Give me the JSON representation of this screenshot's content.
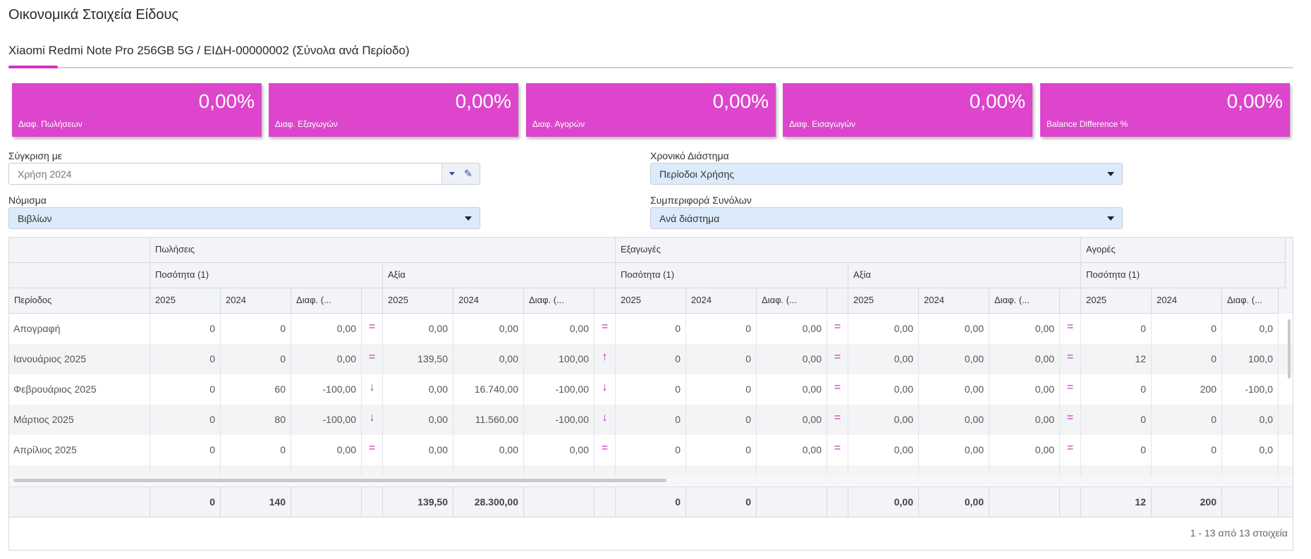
{
  "page": {
    "title": "Οικονομικά Στοιχεία Είδους",
    "subtitle": "Xiaomi Redmi Note Pro 256GB 5G / ΕΙΔΗ-00000002 (Σύνολα ανά Περίοδο)"
  },
  "kpis": [
    {
      "value": "0,00%",
      "label": "Διαφ. Πωλήσεων"
    },
    {
      "value": "0,00%",
      "label": "Διαφ. Εξαγωγών"
    },
    {
      "value": "0,00%",
      "label": "Διαφ. Αγορών"
    },
    {
      "value": "0,00%",
      "label": "Διαφ. Εισαγωγών"
    },
    {
      "value": "0,00%",
      "label": "Balance Difference %"
    }
  ],
  "filters": {
    "compare": {
      "label": "Σύγκριση με",
      "value": "Χρήση 2024"
    },
    "period": {
      "label": "Χρονικό Διάστημα",
      "value": "Περίοδοι Χρήσης"
    },
    "currency": {
      "label": "Νόμισμα",
      "value": "Βιβλίων"
    },
    "totals": {
      "label": "Συμπεριφορά Συνόλων",
      "value": "Ανά διάστημα"
    }
  },
  "grid": {
    "groups": [
      "Πωλήσεις",
      "Εξαγωγές",
      "Αγορές"
    ],
    "subgroups": [
      "Ποσότητα (1)",
      "Αξία",
      "Ποσότητα (1)",
      "Αξία",
      "Ποσότητα (1)"
    ],
    "period_header": "Περίοδος",
    "year_headers": [
      "2025",
      "2024",
      "Διαφ. (..."
    ],
    "rows": [
      {
        "period": "Απογραφή",
        "cells": [
          "0",
          "0",
          "0,00",
          "=",
          "0,00",
          "0,00",
          "0,00",
          "=",
          "0",
          "0",
          "0,00",
          "=",
          "0,00",
          "0,00",
          "0,00",
          "=",
          "0",
          "0",
          "0,0"
        ]
      },
      {
        "period": "Ιανουάριος 2025",
        "cells": [
          "0",
          "0",
          "0,00",
          "=",
          "139,50",
          "0,00",
          "100,00",
          "↑",
          "0",
          "0",
          "0,00",
          "=",
          "0,00",
          "0,00",
          "0,00",
          "=",
          "12",
          "0",
          "100,0"
        ]
      },
      {
        "period": "Φεβρουάριος 2025",
        "cells": [
          "0",
          "60",
          "-100,00",
          "↓",
          "0,00",
          "16.740,00",
          "-100,00",
          "↓",
          "0",
          "0",
          "0,00",
          "=",
          "0,00",
          "0,00",
          "0,00",
          "=",
          "0",
          "200",
          "-100,0"
        ]
      },
      {
        "period": "Μάρτιος 2025",
        "cells": [
          "0",
          "80",
          "-100,00",
          "↓",
          "0,00",
          "11.560,00",
          "-100,00",
          "↓",
          "0",
          "0",
          "0,00",
          "=",
          "0,00",
          "0,00",
          "0,00",
          "=",
          "0",
          "0",
          "0,0"
        ]
      },
      {
        "period": "Απρίλιος 2025",
        "cells": [
          "0",
          "0",
          "0,00",
          "=",
          "0,00",
          "0,00",
          "0,00",
          "=",
          "0",
          "0",
          "0,00",
          "=",
          "0,00",
          "0,00",
          "0,00",
          "=",
          "0",
          "0",
          "0,0"
        ]
      },
      {
        "period": "",
        "cells": [
          "",
          "",
          "",
          "",
          "",
          "",
          "",
          "",
          "",
          "",
          "",
          "",
          "",
          "",
          "",
          "",
          "",
          "",
          ""
        ]
      }
    ],
    "totals": [
      "0",
      "140",
      "",
      "",
      "139,50",
      "28.300,00",
      "",
      "",
      "0",
      "0",
      "",
      "",
      "0,00",
      "0,00",
      "",
      "",
      "12",
      "200",
      ""
    ],
    "pager": "1 - 13 από 13 στοιχεία"
  },
  "colors": {
    "accent": "#dd45cc",
    "indicator": "#c22ab8",
    "select_blue": "#dcebfb"
  }
}
